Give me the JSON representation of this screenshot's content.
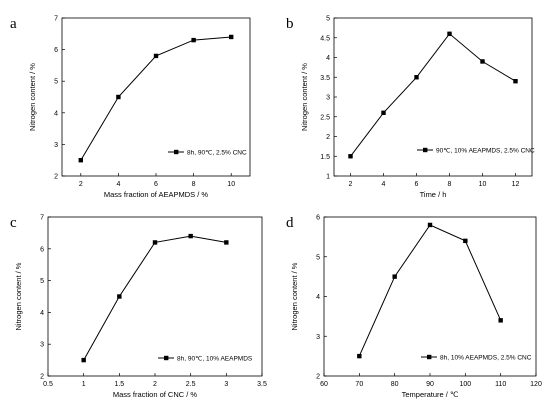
{
  "chart_data": [
    {
      "panel": "a",
      "type": "line",
      "xlabel": "Mass fraction of AEAPMDS / %",
      "ylabel": "Nitrogen content / %",
      "xlim": [
        1,
        11
      ],
      "ylim": [
        2,
        7
      ],
      "xticks": [
        2,
        4,
        6,
        8,
        10
      ],
      "yticks": [
        2,
        3,
        4,
        5,
        6,
        7
      ],
      "x": [
        2,
        4,
        6,
        8,
        10
      ],
      "series": [
        {
          "name": "8h, 90℃, 2.5% CNC",
          "values": [
            2.5,
            4.5,
            5.8,
            6.3,
            6.4
          ]
        }
      ],
      "legend_position": "lower-right",
      "grid": false
    },
    {
      "panel": "b",
      "type": "line",
      "xlabel": "Time / h",
      "ylabel": "Nitrogen content / %",
      "xlim": [
        1,
        13
      ],
      "ylim": [
        1.0,
        5.0
      ],
      "xticks": [
        2,
        4,
        6,
        8,
        10,
        12
      ],
      "yticks": [
        1.0,
        1.5,
        2.0,
        2.5,
        3.0,
        3.5,
        4.0,
        4.5,
        5.0
      ],
      "x": [
        2,
        4,
        6,
        8,
        10,
        12
      ],
      "series": [
        {
          "name": "90℃, 10% AEAPMDS, 2.5% CNC",
          "values": [
            1.5,
            2.6,
            3.5,
            4.6,
            3.9,
            3.4
          ]
        }
      ],
      "legend_position": "lower-right",
      "grid": false
    },
    {
      "panel": "c",
      "type": "line",
      "xlabel": "Mass fraction of CNC / %",
      "ylabel": "Nitrogen content / %",
      "xlim": [
        0.5,
        3.5
      ],
      "ylim": [
        2,
        7
      ],
      "xticks": [
        0.5,
        1.0,
        1.5,
        2.0,
        2.5,
        3.0,
        3.5
      ],
      "yticks": [
        2,
        3,
        4,
        5,
        6,
        7
      ],
      "x": [
        1.0,
        1.5,
        2.0,
        2.5,
        3.0
      ],
      "series": [
        {
          "name": "8h, 90℃, 10% AEAPMDS",
          "values": [
            2.5,
            4.5,
            6.2,
            6.4,
            6.2
          ]
        }
      ],
      "legend_position": "lower-right",
      "grid": false
    },
    {
      "panel": "d",
      "type": "line",
      "xlabel": "Temperature / ℃",
      "ylabel": "Nitrogen content / %",
      "xlim": [
        60,
        120
      ],
      "ylim": [
        2,
        6
      ],
      "xticks": [
        60,
        70,
        80,
        90,
        100,
        110,
        120
      ],
      "yticks": [
        2,
        3,
        4,
        5,
        6
      ],
      "x": [
        70,
        80,
        90,
        100,
        110
      ],
      "series": [
        {
          "name": "8h, 10% AEAPMDS, 2.5% CNC",
          "values": [
            2.5,
            4.5,
            5.8,
            5.4,
            3.4
          ]
        }
      ],
      "legend_position": "lower-right",
      "grid": false
    }
  ]
}
